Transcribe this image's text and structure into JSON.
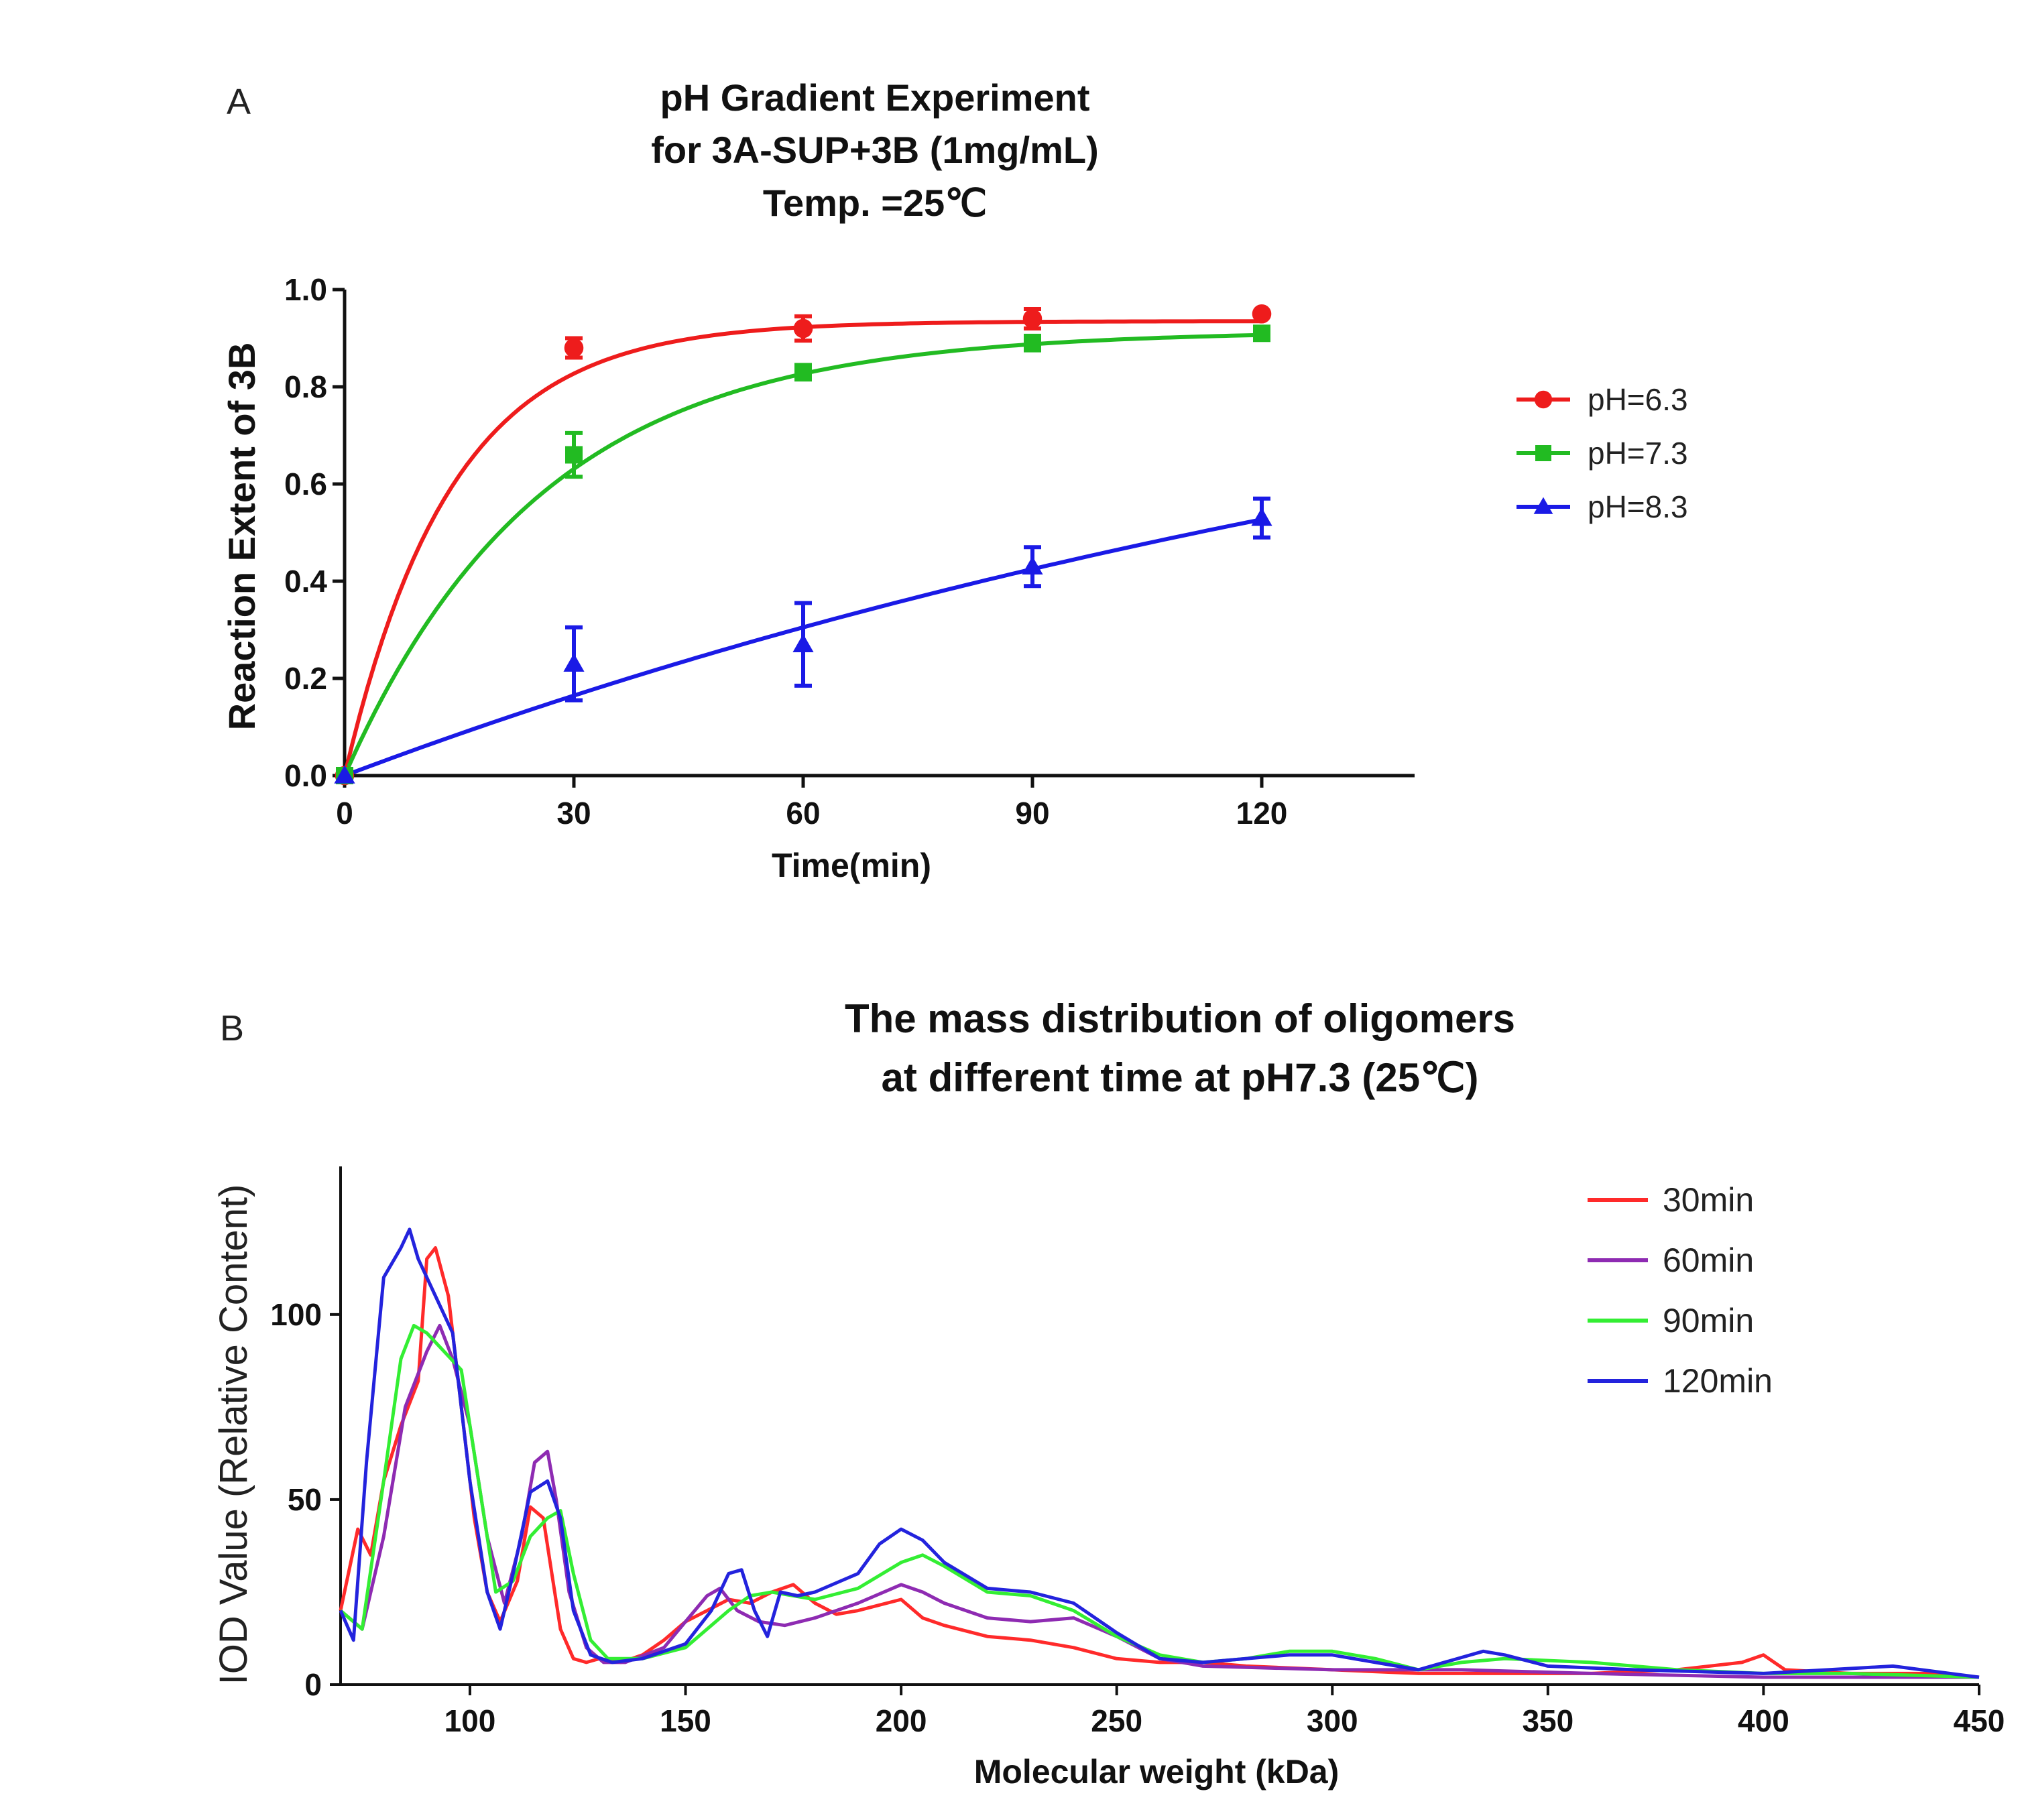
{
  "chart_data": [
    {
      "panel_label": "A",
      "type": "scatter",
      "title": [
        "pH Gradient Experiment",
        "for 3A-SUP+3B (1mg/mL)",
        "Temp. =25℃"
      ],
      "xlabel": "Time(min)",
      "ylabel": "Reaction Extent of 3B",
      "xlim": [
        0,
        140
      ],
      "ylim": [
        0,
        1.0
      ],
      "xticks": [
        0,
        30,
        60,
        90,
        120
      ],
      "xtick_labels": [
        "0",
        "30",
        "60",
        "90",
        "120"
      ],
      "yticks": [
        0.0,
        0.2,
        0.4,
        0.6,
        0.8,
        1.0
      ],
      "ytick_labels": [
        "0.0",
        "0.2",
        "0.4",
        "0.6",
        "0.8",
        "1.0"
      ],
      "grid": false,
      "legend": "right",
      "fit": "one-phase exponential association",
      "series": [
        {
          "name": "pH=6.3",
          "color": "#ee1c1c",
          "marker": "circle",
          "x": [
            0,
            30,
            60,
            90,
            120
          ],
          "y": [
            0.0,
            0.88,
            0.92,
            0.94,
            0.95
          ],
          "error": [
            0.0,
            0.02,
            0.025,
            0.02,
            0.0
          ],
          "fit": {
            "plateau": 0.935,
            "k": 0.072
          }
        },
        {
          "name": "pH=7.3",
          "color": "#22bb22",
          "marker": "square",
          "x": [
            0,
            30,
            60,
            90,
            120
          ],
          "y": [
            0.0,
            0.66,
            0.83,
            0.89,
            0.91
          ],
          "error": [
            0.0,
            0.045,
            0.015,
            0.015,
            0.012
          ],
          "fit": {
            "plateau": 0.915,
            "k": 0.039
          }
        },
        {
          "name": "pH=8.3",
          "color": "#1a1ae6",
          "marker": "triangle",
          "x": [
            0,
            30,
            60,
            90,
            120
          ],
          "y": [
            0.0,
            0.23,
            0.27,
            0.43,
            0.53
          ],
          "error": [
            0.0,
            0.075,
            0.085,
            0.04,
            0.04
          ],
          "fit": {
            "plateau": 1.12,
            "k": 0.0053
          }
        }
      ]
    },
    {
      "panel_label": "B",
      "type": "line",
      "title": [
        "The mass distribution of oligomers",
        "at different time at pH7.3 (25℃)"
      ],
      "xlabel": "Molecular weight (kDa)",
      "ylabel": "IOD Value (Relative Content)",
      "xlim": [
        70,
        450
      ],
      "ylim": [
        0,
        140
      ],
      "xticks": [
        100,
        150,
        200,
        250,
        300,
        350,
        400,
        450
      ],
      "xtick_labels": [
        "100",
        "150",
        "200",
        "250",
        "300",
        "350",
        "400",
        "450"
      ],
      "yticks": [
        0,
        50,
        100
      ],
      "ytick_labels": [
        "0",
        "50",
        "100"
      ],
      "grid": false,
      "legend": "top-right",
      "series": [
        {
          "name": "30min",
          "color": "#ff2a2a",
          "x": [
            70,
            74,
            77,
            80,
            84,
            88,
            90,
            92,
            95,
            98,
            101,
            104,
            107,
            111,
            114,
            117,
            119,
            121,
            124,
            127,
            130,
            135,
            140,
            145,
            150,
            155,
            160,
            165,
            170,
            175,
            180,
            185,
            190,
            200,
            205,
            210,
            220,
            230,
            240,
            250,
            260,
            270,
            280,
            300,
            320,
            340,
            360,
            380,
            395,
            400,
            405,
            420,
            440,
            450
          ],
          "y": [
            20,
            42,
            35,
            55,
            70,
            82,
            115,
            118,
            105,
            75,
            45,
            25,
            17,
            28,
            48,
            45,
            30,
            15,
            7,
            6,
            7,
            6,
            8,
            12,
            17,
            20,
            23,
            22,
            25,
            27,
            22,
            19,
            20,
            23,
            18,
            16,
            13,
            12,
            10,
            7,
            6,
            6,
            5,
            4,
            3,
            3,
            3,
            4,
            6,
            8,
            4,
            3,
            3,
            2
          ]
        },
        {
          "name": "60min",
          "color": "#8e2bb2",
          "x": [
            70,
            75,
            80,
            85,
            90,
            93,
            96,
            100,
            104,
            108,
            112,
            115,
            118,
            120,
            123,
            127,
            131,
            136,
            145,
            150,
            155,
            158,
            162,
            167,
            173,
            180,
            190,
            200,
            205,
            210,
            220,
            230,
            240,
            250,
            260,
            270,
            300,
            330,
            360,
            400,
            450
          ],
          "y": [
            20,
            15,
            40,
            75,
            90,
            97,
            88,
            70,
            40,
            22,
            40,
            60,
            63,
            50,
            25,
            10,
            6,
            6,
            10,
            17,
            24,
            26,
            20,
            17,
            16,
            18,
            22,
            27,
            25,
            22,
            18,
            17,
            18,
            13,
            7,
            5,
            4,
            4,
            3,
            2,
            2
          ]
        },
        {
          "name": "90min",
          "color": "#33ee33",
          "x": [
            70,
            75,
            80,
            84,
            87,
            90,
            94,
            98,
            102,
            106,
            110,
            114,
            118,
            121,
            124,
            128,
            132,
            140,
            150,
            155,
            160,
            165,
            170,
            180,
            190,
            200,
            205,
            210,
            220,
            230,
            240,
            250,
            260,
            270,
            280,
            290,
            300,
            310,
            320,
            330,
            340,
            360,
            380,
            400,
            420,
            450
          ],
          "y": [
            20,
            15,
            55,
            88,
            97,
            95,
            90,
            85,
            55,
            25,
            28,
            40,
            45,
            47,
            30,
            12,
            7,
            7,
            10,
            15,
            20,
            24,
            25,
            23,
            26,
            33,
            35,
            32,
            25,
            24,
            20,
            13,
            8,
            6,
            7,
            9,
            9,
            7,
            4,
            6,
            7,
            6,
            4,
            3,
            3,
            2
          ]
        },
        {
          "name": "120min",
          "color": "#2323dd",
          "x": [
            70,
            73,
            76,
            80,
            84,
            86,
            88,
            92,
            96,
            100,
            104,
            107,
            110,
            114,
            118,
            121,
            124,
            128,
            133,
            140,
            150,
            156,
            160,
            163,
            166,
            169,
            172,
            176,
            180,
            190,
            195,
            200,
            205,
            210,
            220,
            230,
            240,
            250,
            260,
            270,
            280,
            290,
            300,
            310,
            320,
            335,
            340,
            350,
            370,
            400,
            430,
            450
          ],
          "y": [
            20,
            12,
            60,
            110,
            118,
            123,
            115,
            105,
            95,
            55,
            25,
            15,
            30,
            52,
            55,
            45,
            20,
            8,
            6,
            7,
            11,
            20,
            30,
            31,
            20,
            13,
            25,
            24,
            25,
            30,
            38,
            42,
            39,
            33,
            26,
            25,
            22,
            14,
            7,
            6,
            7,
            8,
            8,
            6,
            4,
            9,
            8,
            5,
            4,
            3,
            5,
            2
          ]
        }
      ]
    }
  ]
}
